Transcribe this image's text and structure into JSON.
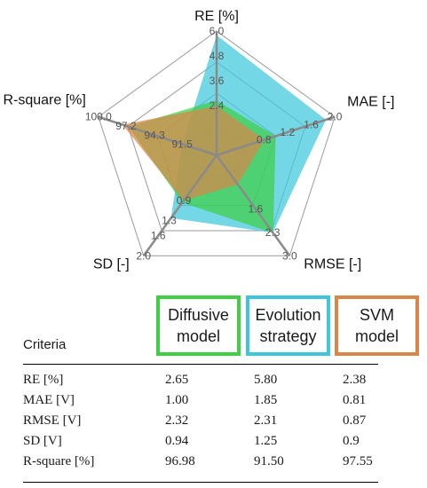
{
  "chart_data": {
    "type": "radar",
    "axes": [
      {
        "label": "RE [%]",
        "ticks": [
          "2.4",
          "3.6",
          "4.8",
          "6.0"
        ],
        "tick_values": [
          2.4,
          3.6,
          4.8,
          6.0
        ],
        "max": 6.0
      },
      {
        "label": "MAE [-]",
        "ticks": [
          "0.8",
          "1.2",
          "1.6",
          "2.0"
        ],
        "tick_values": [
          0.8,
          1.2,
          1.6,
          2.0
        ],
        "max": 2.0
      },
      {
        "label": "RMSE [-]",
        "ticks": [
          "1.6",
          "2.3",
          "3.0"
        ],
        "tick_values": [
          1.6,
          2.3,
          3.0
        ],
        "max": 3.0
      },
      {
        "label": "SD [-]",
        "ticks": [
          "0.9",
          "1.3",
          "1.6",
          "2.0"
        ],
        "tick_values": [
          0.9,
          1.3,
          1.6,
          2.0
        ],
        "max": 2.0
      },
      {
        "label": "R-square [%]",
        "ticks": [
          "91.5",
          "94.3",
          "97.2",
          "100.0"
        ],
        "tick_values": [
          91.5,
          94.3,
          97.2,
          100.0
        ],
        "max": 100.0,
        "min": 88.0
      }
    ],
    "series": [
      {
        "name": "Evolution strategy",
        "color": "#3ec7dc",
        "values": [
          5.8,
          1.85,
          2.31,
          1.25,
          91.5
        ]
      },
      {
        "name": "Diffusive model",
        "color": "#3fcf45",
        "values": [
          2.65,
          1.0,
          2.32,
          0.94,
          96.98
        ]
      },
      {
        "name": "SVM model",
        "color": "#d9864a",
        "values": [
          2.38,
          0.81,
          0.87,
          0.9,
          97.55
        ]
      }
    ],
    "grid_rings": 4,
    "table": {
      "heading": "Criteria",
      "rows": [
        {
          "criterion": "RE [%]",
          "values": [
            "2.65",
            "5.80",
            "2.38"
          ]
        },
        {
          "criterion": "MAE [V]",
          "values": [
            "1.00",
            "1.85",
            "0.81"
          ]
        },
        {
          "criterion": "RMSE [V]",
          "values": [
            "2.32",
            "2.31",
            "0.87"
          ]
        },
        {
          "criterion": "SD [V]",
          "values": [
            "0.94",
            "1.25",
            "0.9"
          ]
        },
        {
          "criterion": "R-square [%]",
          "values": [
            "96.98",
            "91.50",
            "97.55"
          ]
        }
      ]
    }
  },
  "legend": {
    "diffusive": {
      "line1": "Diffusive",
      "line2": "model",
      "color": "#3fcf45"
    },
    "evolution": {
      "line1": "Evolution",
      "line2": "strategy",
      "color": "#3ec7dc"
    },
    "svm": {
      "line1": "SVM",
      "line2": "model",
      "color": "#d9864a"
    }
  }
}
